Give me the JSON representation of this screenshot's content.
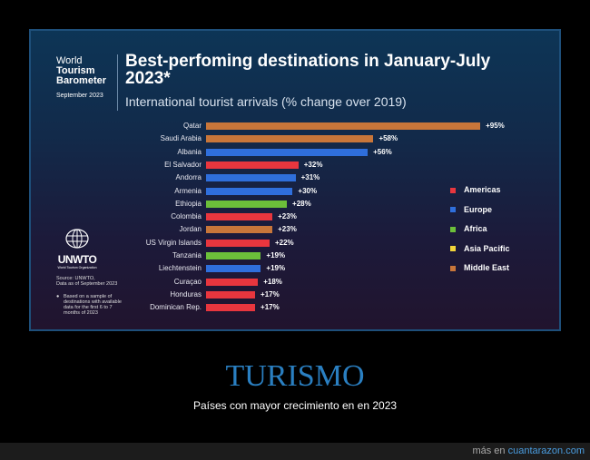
{
  "brand": {
    "line1": "World",
    "line2": "Tourism",
    "line3": "Barometer",
    "date": "September 2023"
  },
  "logo": {
    "name": "UNWTO",
    "sub": "World Tourism Organization"
  },
  "source": {
    "line1": "Source: UNWTO,",
    "line2": "Data as of September 2023"
  },
  "note": "Based on a sample of destinations with available data for the first 6 to 7 months of 2023",
  "colors": {
    "Americas": "#e8363e",
    "Europe": "#2f6fdc",
    "Africa": "#6cbf3a",
    "Asia Pacific": "#f2d43a",
    "Middle East": "#c8763a"
  },
  "chart_data": {
    "type": "bar",
    "orientation": "horizontal",
    "title": "Best-perfoming destinations in January-July 2023*",
    "subtitle": "International tourist arrivals (% change over 2019)",
    "categories": [
      "Qatar",
      "Saudi Arabia",
      "Albania",
      "El Salvador",
      "Andorra",
      "Armenia",
      "Ethiopia",
      "Colombia",
      "Jordan",
      "US Virgin Islands",
      "Tanzania",
      "Liechtenstein",
      "Curaçao",
      "Honduras",
      "Dominican Rep."
    ],
    "values": [
      95,
      58,
      56,
      32,
      31,
      30,
      28,
      23,
      23,
      22,
      19,
      19,
      18,
      17,
      17
    ],
    "labels": [
      "+95%",
      "+58%",
      "+56%",
      "+32%",
      "+31%",
      "+30%",
      "+28%",
      "+23%",
      "+23%",
      "+22%",
      "+19%",
      "+19%",
      "+18%",
      "+17%",
      "+17%"
    ],
    "regions": [
      "Middle East",
      "Middle East",
      "Europe",
      "Americas",
      "Europe",
      "Europe",
      "Africa",
      "Americas",
      "Middle East",
      "Americas",
      "Africa",
      "Europe",
      "Americas",
      "Americas",
      "Americas"
    ],
    "legend": [
      "Americas",
      "Europe",
      "Africa",
      "Asia Pacific",
      "Middle East"
    ],
    "legend_position": "right"
  },
  "caption": {
    "title": "TURISMO",
    "text": "Países con mayor crecimiento en en 2023"
  },
  "footer": {
    "prefix": "más en ",
    "link": "cuantarazon.com"
  }
}
